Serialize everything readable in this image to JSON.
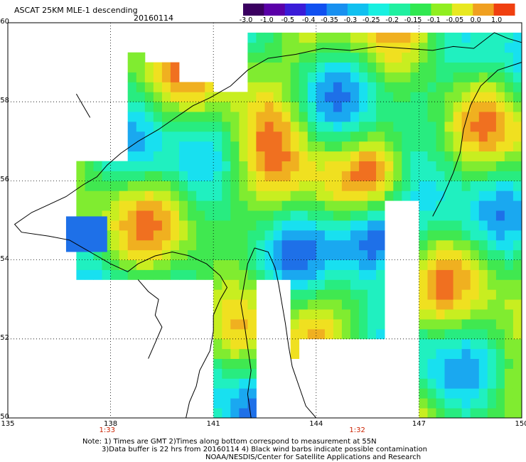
{
  "header": {
    "title": "ASCAT 25KM MLE-1 descending",
    "date": "20160114"
  },
  "colorbar": {
    "labels": [
      "-3.0",
      "-1.0",
      "-0.5",
      "-0.4",
      "-0.35",
      "-0.3",
      "-0.25",
      "-0.2",
      "-0.15",
      "-0.1",
      "-0.05",
      "0.0",
      "1.0"
    ],
    "colors": [
      "#3a0060",
      "#5a00a8",
      "#3a1cd8",
      "#1050f0",
      "#1890f0",
      "#10c0f0",
      "#18f0e0",
      "#20f0a0",
      "#30e850",
      "#90ee20",
      "#e8e820",
      "#f0a020",
      "#f04010"
    ]
  },
  "map": {
    "lon_ticks": [
      "135",
      "138",
      "141",
      "144",
      "147",
      "150"
    ],
    "lat_ticks": [
      "60",
      "58",
      "56",
      "54",
      "52",
      "50"
    ],
    "time_labels": [
      {
        "lon": 137.9,
        "text": "1:33"
      },
      {
        "lon": 145.2,
        "text": "1:32"
      }
    ]
  },
  "notes": {
    "line1": "Note: 1) Times are GMT 2)Times along bottom correspond to measurement at 55N",
    "line2": "3)Data buffer is 22 hrs from 20160114 4) Black wind barbs indicate possible contamination",
    "line3": "NOAA/NESDIS/Center for Satellite Applications and Research"
  }
}
